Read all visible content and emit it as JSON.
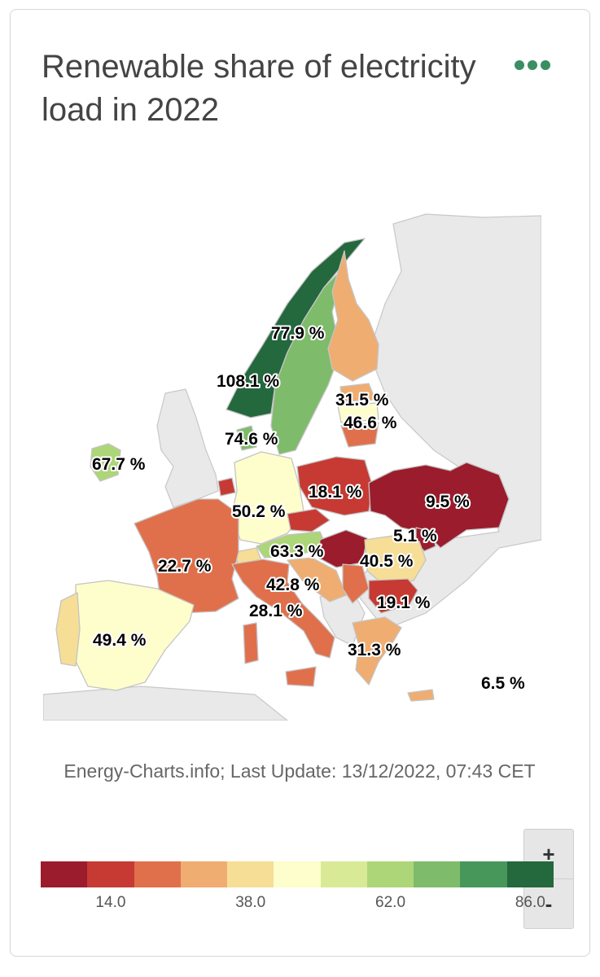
{
  "title": "Renewable share of electricity load in 2022",
  "attribution": "Energy-Charts.info; Last Update: 13/12/2022, 07:43 CET",
  "zoom": {
    "in_label": "+",
    "out_label": "-"
  },
  "colors": {
    "accent": "#3a8f62",
    "scale": [
      "#9b1c2c",
      "#c63a33",
      "#e0704b",
      "#f0ad71",
      "#f6de96",
      "#fefdcc",
      "#d9ea97",
      "#acd677",
      "#7ebb6b",
      "#47975a",
      "#24683e"
    ]
  },
  "legend": {
    "ticks": [
      "14.0",
      "38.0",
      "62.0",
      "86.0"
    ]
  },
  "labels": {
    "sweden": "77.9 %",
    "norway": "108.1 %",
    "estonia": "31.5 %",
    "latvia": "46.6 %",
    "denmark": "74.6 %",
    "ireland": "67.7 %",
    "poland": "18.1 %",
    "ukraine": "9.5 %",
    "germany": "50.2 %",
    "moldova": "5.1 %",
    "austria": "63.3 %",
    "romania": "40.5 %",
    "france": "22.7 %",
    "croatia": "42.8 %",
    "bulgaria": "19.1 %",
    "italy": "28.1 %",
    "spain": "49.4 %",
    "greece": "31.3 %",
    "cyprus": "6.5 %"
  }
}
